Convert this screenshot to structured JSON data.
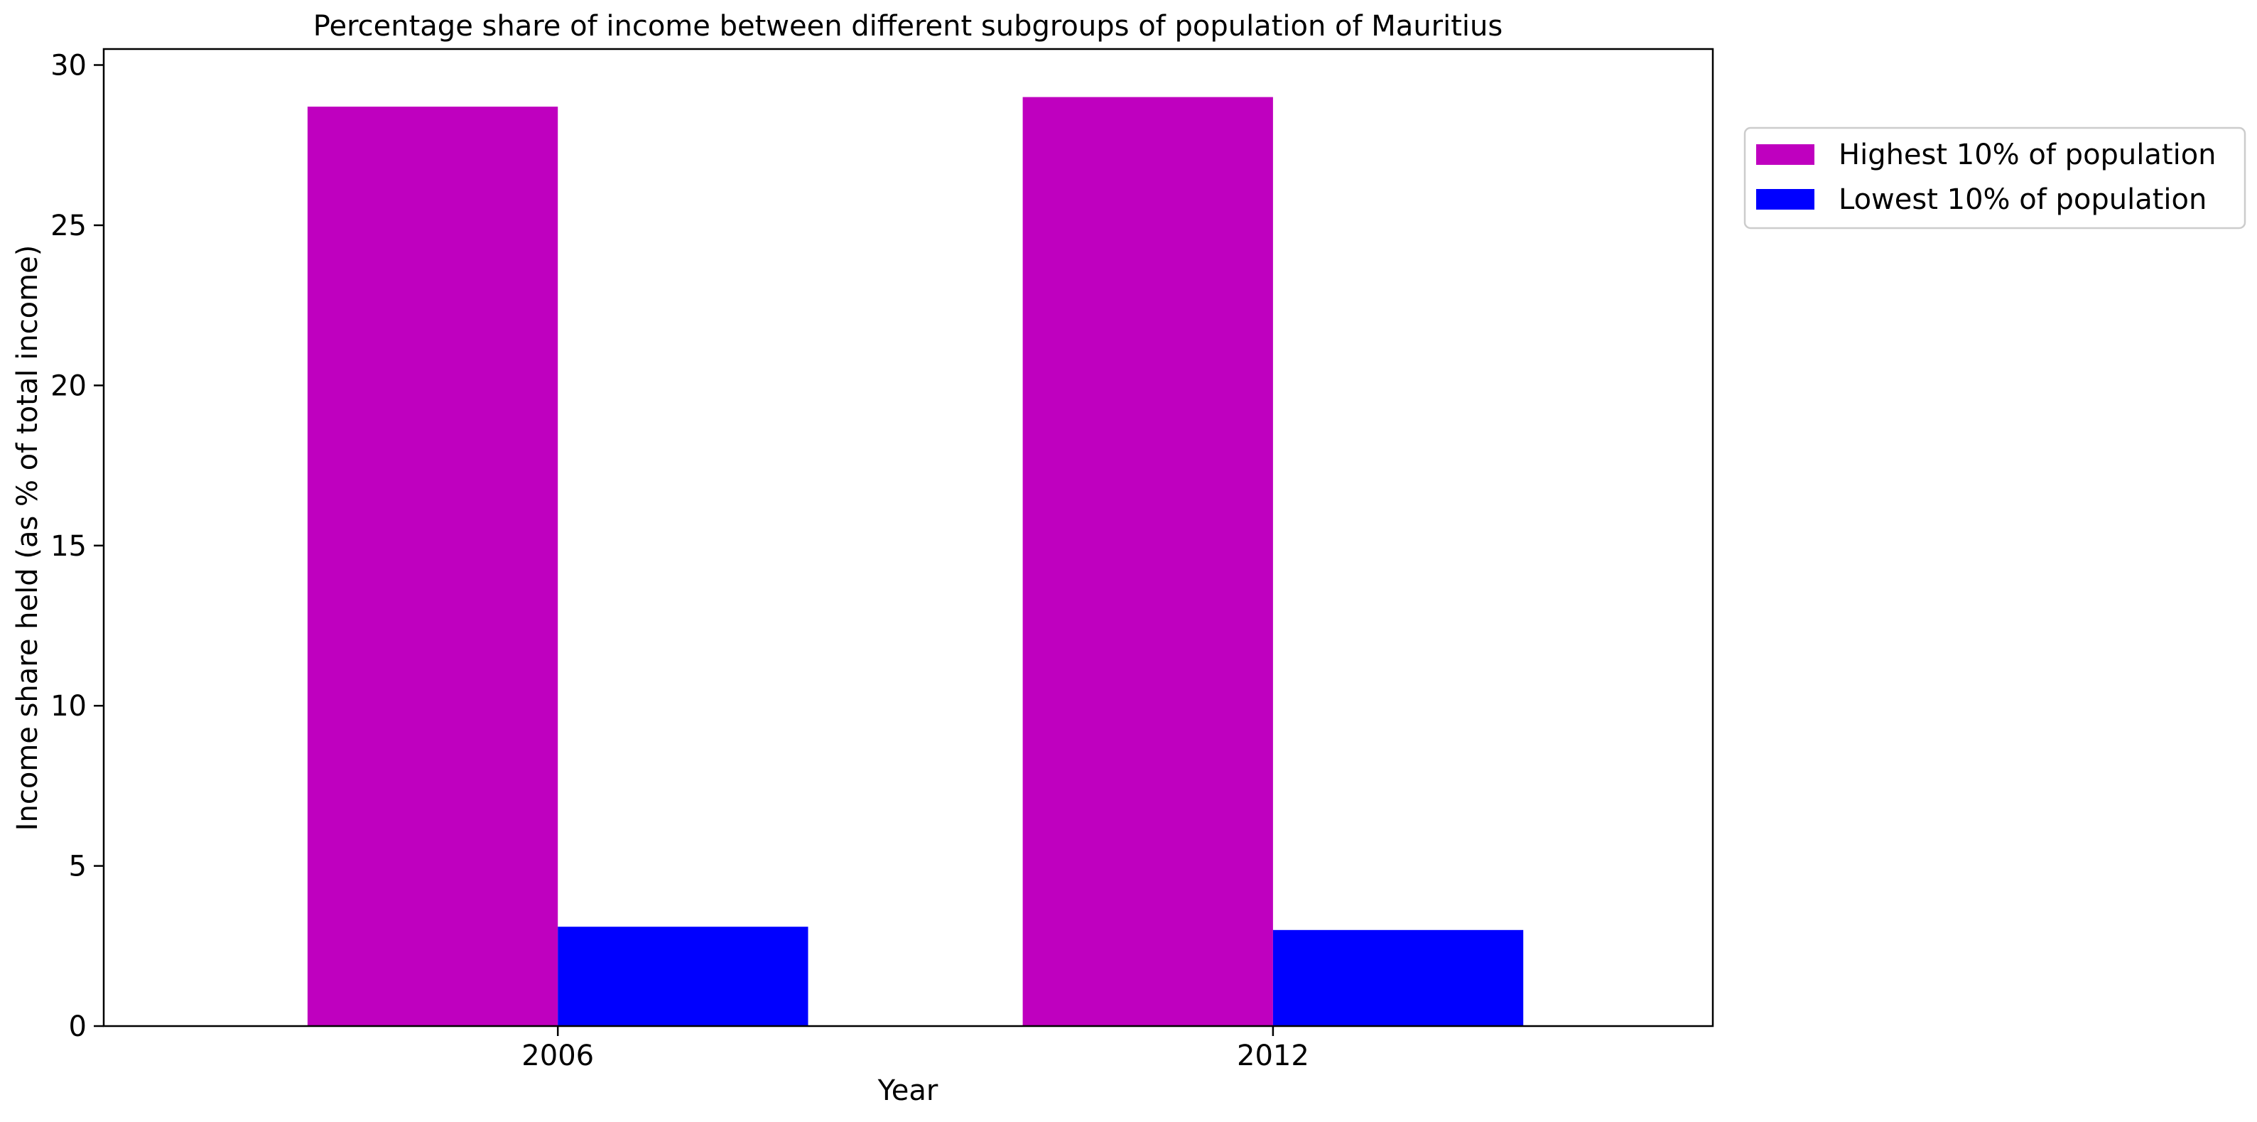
{
  "chart_data": {
    "type": "bar",
    "title": "Percentage share of income between different subgroups of population of Mauritius",
    "xlabel": "Year",
    "ylabel": "Income share held (as % of total income)",
    "categories": [
      "2006",
      "2012"
    ],
    "series": [
      {
        "name": "Highest 10% of population",
        "color": "#bf00bf",
        "values": [
          28.7,
          29.0
        ]
      },
      {
        "name": "Lowest 10% of population",
        "color": "#0000ff",
        "values": [
          3.1,
          3.0
        ]
      }
    ],
    "ylim": [
      0,
      30.5
    ],
    "yticks": [
      0,
      5,
      10,
      15,
      20,
      25,
      30
    ],
    "ytick_labels": [
      "0",
      "5",
      "10",
      "15",
      "20",
      "25",
      "30"
    ],
    "grid": false,
    "legend_position": "outside-top-right"
  }
}
